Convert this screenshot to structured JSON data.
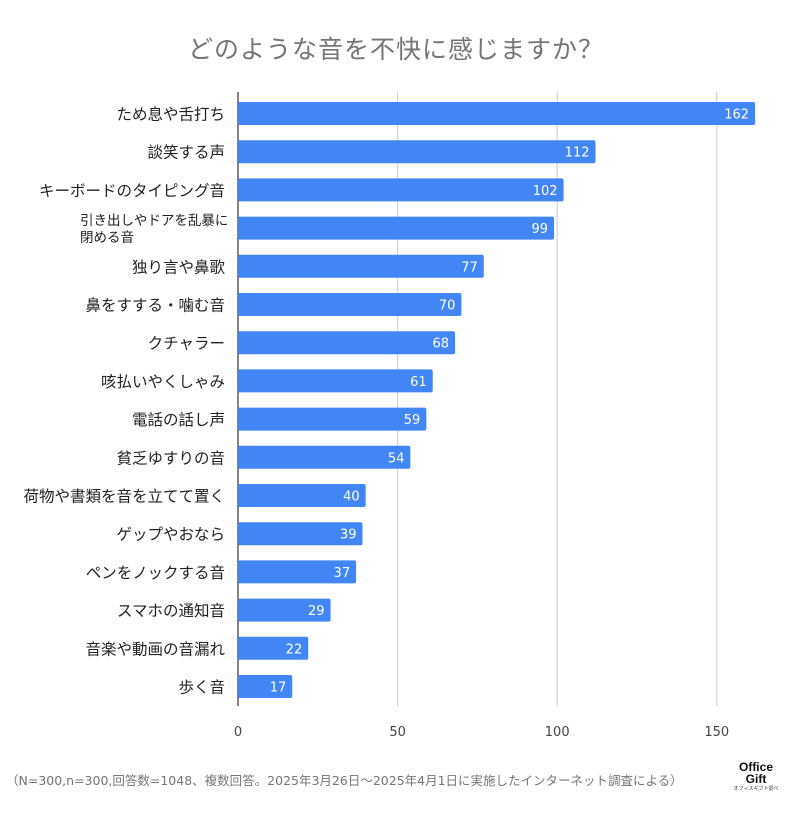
{
  "chart_data": {
    "type": "bar",
    "orientation": "horizontal",
    "title": "どのような音を不快に感じますか？",
    "categories": [
      "ため息や舌打ち",
      "談笑する声",
      "キーボードのタイピング音",
      "引き出しやドアを乱暴に閉める音",
      "独り言や鼻歌",
      "鼻をすする・噛む音",
      "クチャラー",
      "咳払いやくしゃみ",
      "電話の話し声",
      "貧乏ゆすりの音",
      "荷物や書類を音を立てて置く",
      "ゲップやおなら",
      "ペンをノックする音",
      "スマホの通知音",
      "音楽や動画の音漏れ",
      "歩く音"
    ],
    "category_lines": [
      [
        "ため息や舌打ち"
      ],
      [
        "談笑する声"
      ],
      [
        "キーボードのタイピング音"
      ],
      [
        "引き出しやドアを乱暴に",
        "閉める音"
      ],
      [
        "独り言や鼻歌"
      ],
      [
        "鼻をすする・噛む音"
      ],
      [
        "クチャラー"
      ],
      [
        "咳払いやくしゃみ"
      ],
      [
        "電話の話し声"
      ],
      [
        "貧乏ゆすりの音"
      ],
      [
        "荷物や書類を音を立てて置く"
      ],
      [
        "ゲップやおなら"
      ],
      [
        "ペンをノックする音"
      ],
      [
        "スマホの通知音"
      ],
      [
        "音楽や動画の音漏れ"
      ],
      [
        "歩く音"
      ]
    ],
    "values": [
      162,
      112,
      102,
      99,
      77,
      70,
      68,
      61,
      59,
      54,
      40,
      39,
      37,
      29,
      22,
      17
    ],
    "xlim": [
      0,
      162
    ],
    "x_ticks": [
      0,
      50,
      100,
      150
    ],
    "grid": true,
    "bar_color": "#4285f4",
    "data_labels": true
  },
  "footnote": "（N=300,n=300,回答数=1048、複数回答。2025年3月26日〜2025年4月1日に実施したインターネット調査による）",
  "logo": {
    "line1": "Office",
    "line2": "Gift",
    "line3": "オフィスギフト調べ"
  }
}
